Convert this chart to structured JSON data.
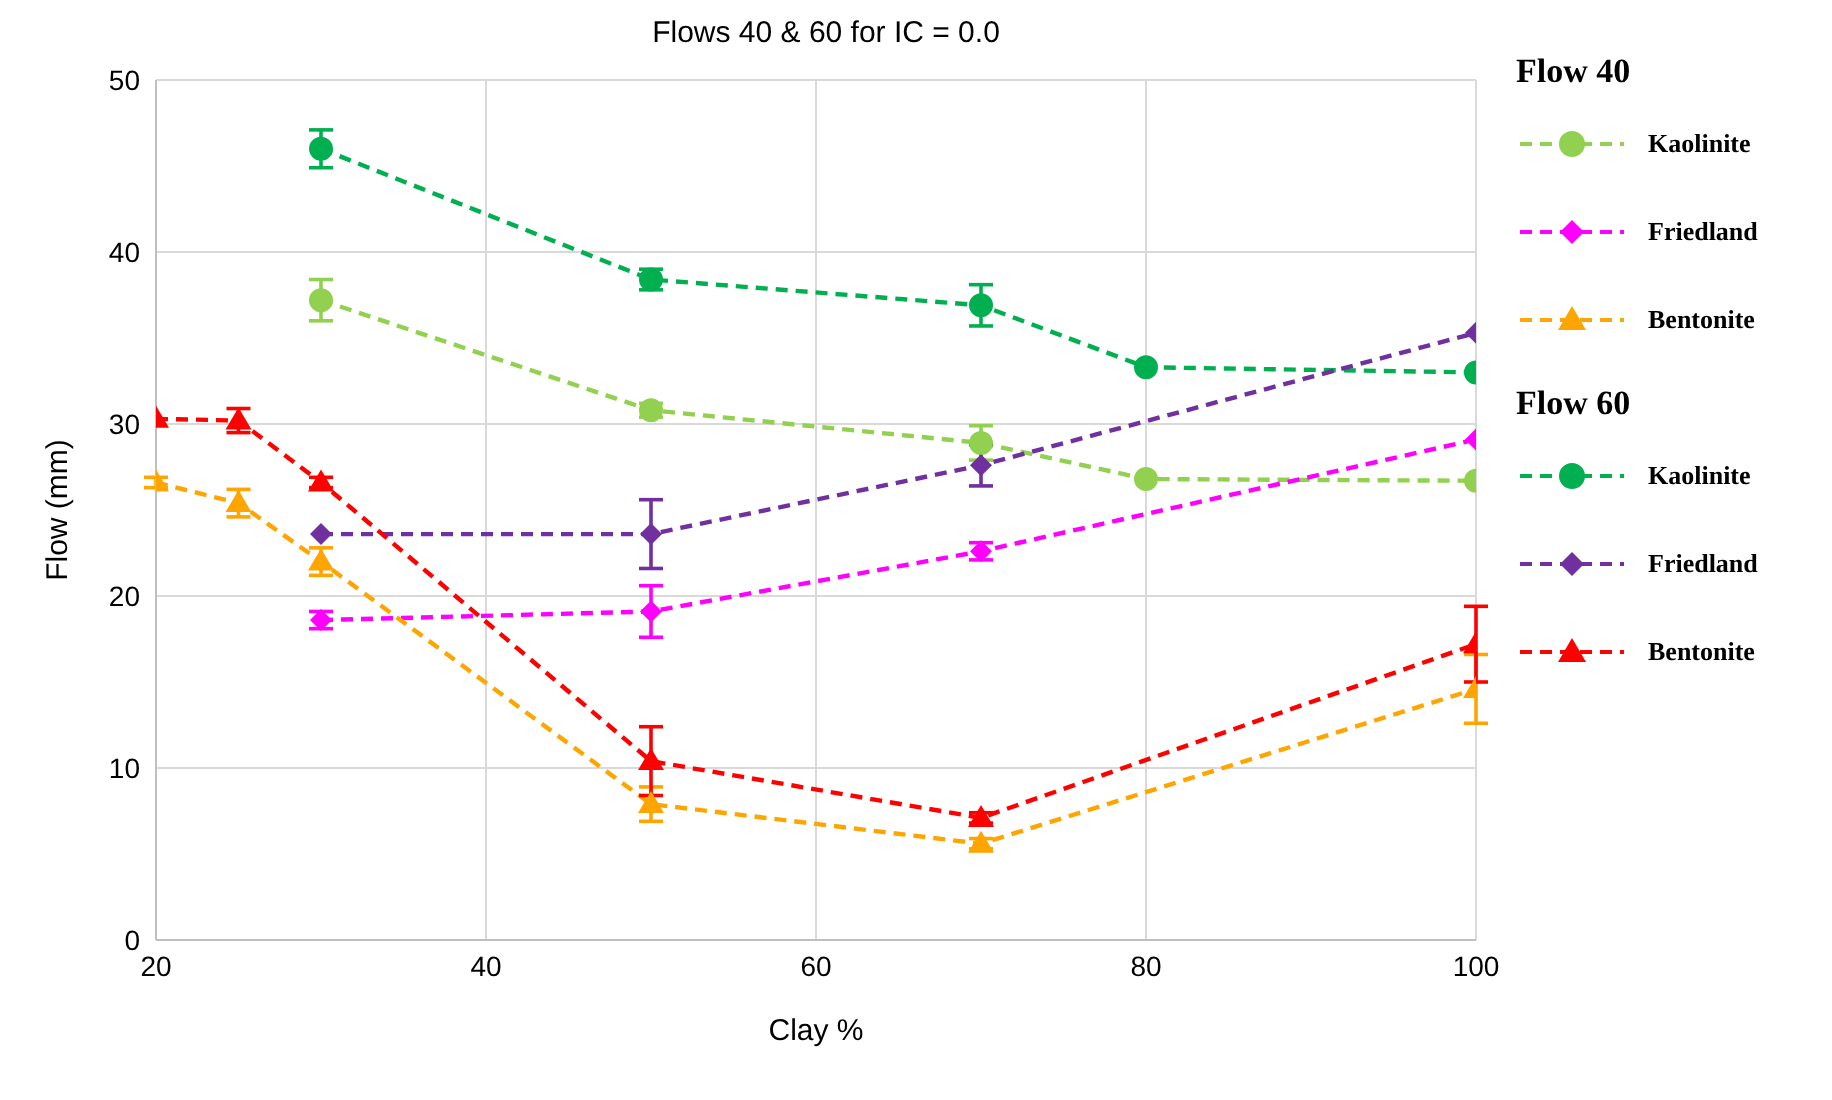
{
  "chart_data": {
    "type": "line",
    "title": "Flows 40 & 60 for IC = 0.0",
    "xlabel": "Clay %",
    "ylabel": "Flow (mm)",
    "xlim": [
      20,
      100
    ],
    "xticks": [
      20,
      40,
      60,
      80,
      100
    ],
    "ylim": [
      0,
      50
    ],
    "yticks": [
      0,
      10,
      20,
      30,
      40,
      50
    ],
    "grid": true,
    "legend": "right",
    "line_style": "dashed",
    "annotations": [
      "Flow 40",
      "Flow 60"
    ],
    "series": [
      {
        "name": "Kaolinite",
        "color": "#92d050",
        "marker": "circle",
        "x": [
          30,
          50,
          70,
          80,
          100
        ],
        "values": [
          37.2,
          30.8,
          28.9,
          26.8,
          26.7
        ],
        "errors": [
          1.2,
          0.4,
          1.0,
          null,
          null
        ]
      },
      {
        "name": "Friedland",
        "color": "#ff00ff",
        "marker": "diamond",
        "x": [
          30,
          50,
          70,
          100
        ],
        "values": [
          18.6,
          19.1,
          22.6,
          29.1
        ],
        "errors": [
          0.5,
          1.5,
          0.5,
          null
        ]
      },
      {
        "name": "Bentonite",
        "color": "#ffa500",
        "marker": "triangle",
        "x": [
          20,
          25,
          30,
          50,
          70,
          100
        ],
        "values": [
          26.6,
          25.4,
          22.0,
          7.9,
          5.6,
          14.6
        ],
        "errors": [
          0.3,
          0.8,
          0.8,
          1.0,
          0.3,
          2.0
        ]
      },
      {
        "name": "Kaolinite",
        "color": "#00b050",
        "marker": "circle",
        "x": [
          30,
          50,
          70,
          80,
          100
        ],
        "values": [
          46.0,
          38.4,
          36.9,
          33.3,
          33.0
        ],
        "errors": [
          1.1,
          0.6,
          1.2,
          null,
          null
        ]
      },
      {
        "name": "Friedland",
        "color": "#7030a0",
        "marker": "diamond",
        "x": [
          30,
          50,
          70,
          100
        ],
        "values": [
          23.6,
          23.6,
          27.6,
          35.3
        ],
        "errors": [
          null,
          2.0,
          1.2,
          null
        ]
      },
      {
        "name": "Bentonite",
        "color": "#ff0000",
        "marker": "triangle",
        "x": [
          20,
          25,
          30,
          50,
          70,
          100
        ],
        "values": [
          30.3,
          30.2,
          26.6,
          10.4,
          7.1,
          17.2
        ],
        "errors": [
          null,
          0.7,
          0.3,
          2.0,
          0.3,
          2.2
        ]
      }
    ]
  }
}
